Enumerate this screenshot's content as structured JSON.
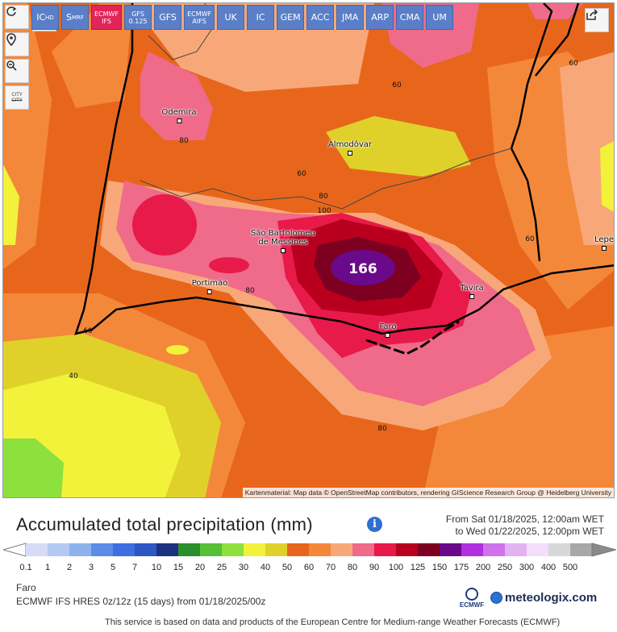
{
  "toolbar": {
    "reload_icon": "reload-icon",
    "models": [
      {
        "main": "IC",
        "sub": "HD",
        "selected": false
      },
      {
        "main": "S",
        "sub": "MRF",
        "selected": false
      },
      {
        "main": "ECMWF",
        "sub": "IFS",
        "selected": true
      },
      {
        "main": "GFS",
        "sub": "0.125",
        "selected": false
      },
      {
        "main": "GFS",
        "sub": "",
        "selected": false
      },
      {
        "main": "ECMWF",
        "sub": "AIFS",
        "selected": false
      },
      {
        "main": "UK",
        "sub": "",
        "selected": false
      },
      {
        "main": "IC",
        "sub": "",
        "selected": false
      },
      {
        "main": "GEM",
        "sub": "",
        "selected": false
      },
      {
        "main": "ACC",
        "sub": "",
        "selected": false
      },
      {
        "main": "JMA",
        "sub": "",
        "selected": false
      },
      {
        "main": "ARP",
        "sub": "",
        "selected": false
      },
      {
        "main": "CMA",
        "sub": "",
        "selected": false
      },
      {
        "main": "UM",
        "sub": "",
        "selected": false
      }
    ],
    "side": {
      "location_icon": "map-pin-icon",
      "zoom_icon": "zoom-out-icon",
      "city_top": "CITY",
      "city_bottom": "CITY"
    },
    "share_icon": "share-icon"
  },
  "map": {
    "places": [
      {
        "name": "Odemira"
      },
      {
        "name": "Almodôvar"
      },
      {
        "name": "São Bartolomeu"
      },
      {
        "name": "de Messines"
      },
      {
        "name": "Portimão"
      },
      {
        "name": "Tavira"
      },
      {
        "name": "Faro"
      },
      {
        "name": "Lepe"
      }
    ],
    "contour_labels": [
      "60",
      "80",
      "60",
      "80",
      "100",
      "60",
      "80",
      "60",
      "40",
      "80",
      "60"
    ],
    "max_value": "166",
    "attribution": "Kartenmaterial: Map data © OpenStreetMap contributors, rendering GIScience Research Group @ Heidelberg University"
  },
  "header": {
    "title": "Accumulated total precipitation (mm)",
    "info_icon": "info-icon",
    "from": "From Sat 01/18/2025, 12:00am WET",
    "to": "to Wed 01/22/2025, 12:00pm WET"
  },
  "scale": {
    "labels": [
      "0.1",
      "1",
      "2",
      "3",
      "5",
      "7",
      "10",
      "15",
      "20",
      "25",
      "30",
      "40",
      "50",
      "60",
      "70",
      "80",
      "90",
      "100",
      "125",
      "150",
      "175",
      "200",
      "250",
      "300",
      "400",
      "500"
    ],
    "colors": [
      "#d6dcf5",
      "#b3c9f2",
      "#8fb2ee",
      "#5b8ce7",
      "#3d6fe0",
      "#2d57c4",
      "#1c327f",
      "#2b8f2b",
      "#56c038",
      "#8ee03c",
      "#f2f23a",
      "#e0d12a",
      "#e8661c",
      "#f4883a",
      "#f8a878",
      "#f06a8a",
      "#e81a4a",
      "#b8001e",
      "#7e0020",
      "#6a0a8a",
      "#b22fe0",
      "#d072ec",
      "#e3b2f3",
      "#f4ddfb",
      "#d8d8d8",
      "#a8a8a8"
    ]
  },
  "footer": {
    "location": "Faro",
    "model_info": "ECMWF IFS HRES 0z/12z (15 days) from 01/18/2025/00z",
    "ecmwf_label": "ECMWF",
    "brand": "meteologix.com",
    "disclaimer": "This service is based on data and products of the European Centre for Medium-range Weather Forecasts (ECMWF)"
  }
}
